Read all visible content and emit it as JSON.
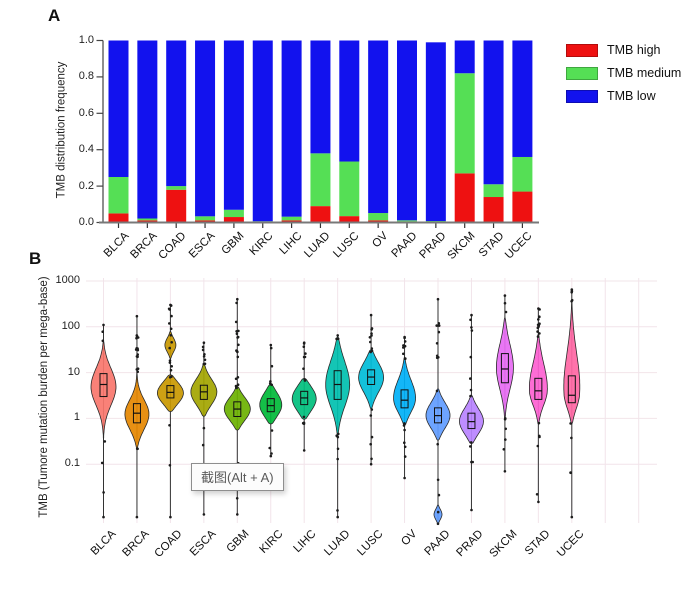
{
  "panel_a": {
    "label": "A",
    "ylabel": "TMB distribution frequency",
    "legend": [
      {
        "label": "TMB high",
        "color": "#ee1111"
      },
      {
        "label": "TMB medium",
        "color": "#55df55"
      },
      {
        "label": "TMB low",
        "color": "#1212ee"
      }
    ]
  },
  "panel_b": {
    "label": "B",
    "ylabel": "TMB (Tumore mutation burden per mega-base)"
  },
  "tooltip": {
    "text": "截图(Alt + A)"
  },
  "chart_data": [
    {
      "type": "bar",
      "stacked": true,
      "title": "TMB distribution frequency by cancer type",
      "ylabel": "TMB distribution frequency",
      "ylim": [
        0,
        1
      ],
      "yticks": [
        0.0,
        0.2,
        0.4,
        0.6,
        0.8,
        1.0
      ],
      "grid": false,
      "legend_position": "right",
      "categories": [
        "BLCA",
        "BRCA",
        "COAD",
        "ESCA",
        "GBM",
        "KIRC",
        "LIHC",
        "LUAD",
        "LUSC",
        "OV",
        "PAAD",
        "PRAD",
        "SKCM",
        "STAD",
        "UCEC"
      ],
      "series": [
        {
          "name": "TMB high",
          "color": "#ee1111",
          "values": [
            0.05,
            0.012,
            0.18,
            0.012,
            0.03,
            0.003,
            0.012,
            0.09,
            0.035,
            0.012,
            0.006,
            0.004,
            0.27,
            0.14,
            0.17
          ]
        },
        {
          "name": "TMB medium",
          "color": "#55df55",
          "values": [
            0.2,
            0.01,
            0.02,
            0.022,
            0.04,
            0.004,
            0.02,
            0.29,
            0.3,
            0.04,
            0.006,
            0.004,
            0.55,
            0.07,
            0.19
          ]
        },
        {
          "name": "TMB low",
          "color": "#1212ee",
          "values": [
            0.75,
            0.978,
            0.8,
            0.966,
            0.93,
            0.993,
            0.968,
            0.62,
            0.665,
            0.948,
            0.988,
            0.982,
            0.18,
            0.79,
            0.64
          ]
        }
      ]
    },
    {
      "type": "violin",
      "yscale": "log",
      "ylabel": "TMB (Tumore mutation burden per mega-base)",
      "ylim": [
        0.005,
        1000
      ],
      "yticks": [
        1000,
        100,
        10,
        1,
        0.1
      ],
      "grid": true,
      "categories": [
        "BLCA",
        "BRCA",
        "COAD",
        "ESCA",
        "GBM",
        "KIRC",
        "LIHC",
        "LUAD",
        "LUSC",
        "OV",
        "PAAD",
        "PRAD",
        "SKCM",
        "STAD",
        "UCEC"
      ],
      "violins": [
        {
          "name": "BLCA",
          "color": "#F8766D",
          "box": [
            3,
            5.5,
            9.5
          ],
          "peak": 5,
          "body": [
            0.35,
            50
          ],
          "spread": [
            0.42,
            0.42
          ],
          "whisker": [
            0.007,
            110
          ],
          "hw": 12.5,
          "dots": [
            2,
            3
          ]
        },
        {
          "name": "BRCA",
          "color": "#E58700",
          "box": [
            0.8,
            1.3,
            2.1
          ],
          "peak": 1.2,
          "body": [
            0.22,
            12
          ],
          "spread": [
            0.35,
            0.33
          ],
          "whisker": [
            0.007,
            170
          ],
          "hw": 12,
          "dots": [
            14,
            2
          ]
        },
        {
          "name": "COAD",
          "color": "#C99800",
          "box": [
            2.8,
            3.7,
            5.2
          ],
          "peak": 3.6,
          "body": [
            1.4,
            9
          ],
          "spread": [
            0.26,
            0.26
          ],
          "whisker": [
            0.007,
            300
          ],
          "hw": 13,
          "dots": [
            15,
            2
          ],
          "blob": {
            "range": [
              20,
              80
            ],
            "peak": 40,
            "spread": 0.16,
            "hw": 5.5
          }
        },
        {
          "name": "ESCA",
          "color": "#A3A500",
          "box": [
            2.6,
            3.8,
            5.3
          ],
          "peak": 3.7,
          "body": [
            1.1,
            16
          ],
          "spread": [
            0.3,
            0.3
          ],
          "whisker": [
            0.008,
            45
          ],
          "hw": 13,
          "dots": [
            7,
            3
          ]
        },
        {
          "name": "GBM",
          "color": "#6BB100",
          "box": [
            1.1,
            1.6,
            2.3
          ],
          "peak": 1.6,
          "body": [
            0.55,
            5
          ],
          "spread": [
            0.27,
            0.27
          ],
          "whisker": [
            0.008,
            400
          ],
          "hw": 13,
          "dots": [
            18,
            3
          ]
        },
        {
          "name": "KIRC",
          "color": "#00BA38",
          "box": [
            1.4,
            1.9,
            2.7
          ],
          "peak": 1.95,
          "body": [
            0.75,
            5.5
          ],
          "spread": [
            0.28,
            0.3
          ],
          "whisker": [
            0.15,
            40
          ],
          "hw": 11,
          "dots": [
            6,
            3
          ]
        },
        {
          "name": "LIHC",
          "color": "#00BF7D",
          "box": [
            2,
            2.8,
            3.9
          ],
          "peak": 2.7,
          "body": [
            0.95,
            7.5
          ],
          "spread": [
            0.3,
            0.3
          ],
          "whisker": [
            0.2,
            45
          ],
          "hw": 12,
          "dots": [
            8,
            4
          ]
        },
        {
          "name": "LUAD",
          "color": "#00C0AF",
          "box": [
            2.6,
            5.5,
            11
          ],
          "peak": 5.5,
          "body": [
            0.4,
            62
          ],
          "spread": [
            0.5,
            0.55
          ],
          "whisker": [
            0.007,
            65
          ],
          "hw": 12,
          "dots": [
            2,
            6
          ]
        },
        {
          "name": "LUSC",
          "color": "#00BCD8",
          "box": [
            5.5,
            8,
            11.5
          ],
          "peak": 8,
          "body": [
            1.6,
            32
          ],
          "spread": [
            0.35,
            0.35
          ],
          "whisker": [
            0.1,
            180
          ],
          "hw": 12.5,
          "dots": [
            9,
            5
          ]
        },
        {
          "name": "OV",
          "color": "#00B0F6",
          "box": [
            1.7,
            2.5,
            4.2
          ],
          "peak": 2.6,
          "body": [
            0.7,
            22
          ],
          "spread": [
            0.32,
            0.42
          ],
          "whisker": [
            0.05,
            60
          ],
          "hw": 11,
          "dots": [
            8,
            6
          ]
        },
        {
          "name": "PAAD",
          "color": "#619CFF",
          "box": [
            0.8,
            1.15,
            1.7
          ],
          "peak": 1.15,
          "body": [
            0.33,
            4.5
          ],
          "spread": [
            0.3,
            0.3
          ],
          "whisker": [
            0.005,
            400
          ],
          "hw": 12,
          "dots": [
            9,
            4
          ],
          "blob": {
            "range": [
              0.005,
              0.013
            ],
            "peak": 0.008,
            "spread": 0.12,
            "hw": 4
          }
        },
        {
          "name": "PRAD",
          "color": "#B983FF",
          "box": [
            0.6,
            0.85,
            1.3
          ],
          "peak": 0.85,
          "body": [
            0.28,
            3.2
          ],
          "spread": [
            0.3,
            0.3
          ],
          "whisker": [
            0.01,
            180
          ],
          "hw": 12,
          "dots": [
            7,
            4
          ]
        },
        {
          "name": "SKCM",
          "color": "#E76BF3",
          "box": [
            6,
            12,
            26
          ],
          "peak": 13,
          "body": [
            0.9,
            160
          ],
          "spread": [
            0.5,
            0.55
          ],
          "whisker": [
            0.07,
            480
          ],
          "hw": 8.5,
          "dots": [
            2,
            5
          ]
        },
        {
          "name": "STAD",
          "color": "#FD61D1",
          "box": [
            2.6,
            4,
            7.5
          ],
          "peak": 4,
          "body": [
            0.75,
            70
          ],
          "spread": [
            0.35,
            0.6
          ],
          "whisker": [
            0.015,
            250
          ],
          "hw": 9,
          "dots": [
            12,
            5
          ]
        },
        {
          "name": "UCEC",
          "color": "#FF67A4",
          "box": [
            2.2,
            3.2,
            8.5
          ],
          "peak": 3.3,
          "body": [
            0.75,
            350
          ],
          "spread": [
            0.35,
            0.85
          ],
          "whisker": [
            0.007,
            650
          ],
          "hw": 8,
          "dots": [
            4,
            4
          ]
        }
      ]
    }
  ]
}
